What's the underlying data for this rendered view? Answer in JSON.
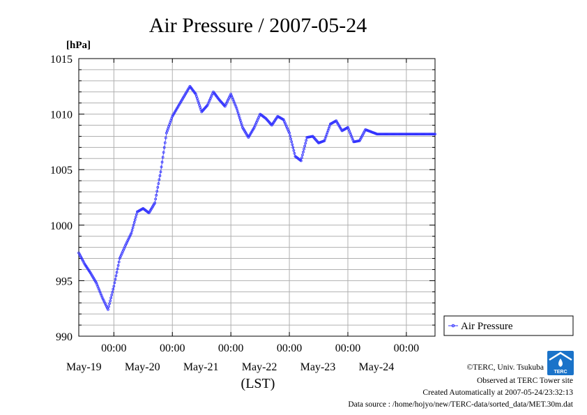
{
  "chart_data": {
    "type": "line",
    "title": "Air Pressure / 2007-05-24",
    "ylabel": "[hPa]",
    "xlabel": "(LST)",
    "ylim": [
      990,
      1015
    ],
    "yticks": [
      "1015",
      "1010",
      "1005",
      "1000",
      "995",
      "990"
    ],
    "ytick_values": [
      1015,
      1010,
      1005,
      1000,
      995,
      990
    ],
    "xlim_days": [
      18.4,
      24.49
    ],
    "xticks": [
      {
        "time": "00:00",
        "date": "May-19"
      },
      {
        "time": "00:00",
        "date": "May-20"
      },
      {
        "time": "00:00",
        "date": "May-21"
      },
      {
        "time": "00:00",
        "date": "May-22"
      },
      {
        "time": "00:00",
        "date": "May-23"
      },
      {
        "time": "00:00",
        "date": "May-24"
      }
    ],
    "xtick_days": [
      19,
      20,
      21,
      22,
      23,
      24
    ],
    "grid": true,
    "legend": {
      "placement": "right",
      "entries": [
        "Air Pressure"
      ]
    },
    "series": [
      {
        "name": "Air Pressure",
        "color": "#3333ff",
        "x": [
          18.4,
          18.5,
          18.6,
          18.7,
          18.8,
          18.9,
          19.0,
          19.1,
          19.2,
          19.3,
          19.4,
          19.5,
          19.6,
          19.7,
          19.8,
          19.9,
          20.0,
          20.1,
          20.2,
          20.3,
          20.4,
          20.5,
          20.6,
          20.7,
          20.8,
          20.9,
          21.0,
          21.1,
          21.2,
          21.3,
          21.4,
          21.5,
          21.6,
          21.7,
          21.8,
          21.9,
          22.0,
          22.1,
          22.2,
          22.3,
          22.4,
          22.5,
          22.6,
          22.7,
          22.8,
          22.9,
          23.0,
          23.1,
          23.2,
          23.3,
          23.4,
          23.5,
          23.6,
          23.7,
          23.8,
          23.9,
          24.0,
          24.1,
          24.2,
          24.3,
          24.4,
          24.49
        ],
        "y": [
          997.5,
          996.5,
          995.7,
          994.8,
          993.5,
          992.4,
          994.5,
          997.0,
          998.2,
          999.3,
          1001.2,
          1001.5,
          1001.1,
          1002.0,
          1004.8,
          1008.3,
          1009.8,
          1010.7,
          1011.6,
          1012.5,
          1011.8,
          1010.2,
          1010.8,
          1012.0,
          1011.3,
          1010.7,
          1011.8,
          1010.5,
          1008.8,
          1007.9,
          1008.8,
          1010.0,
          1009.6,
          1009.0,
          1009.8,
          1009.5,
          1008.3,
          1006.2,
          1005.8,
          1007.9,
          1008.0,
          1007.4,
          1007.6,
          1009.1,
          1009.4,
          1008.5,
          1008.8,
          1007.5,
          1007.6,
          1008.6,
          1008.4,
          1008.2,
          1008.2,
          1008.2,
          1008.2,
          1008.2,
          1008.2,
          1008.2,
          1008.2,
          1008.2,
          1008.2,
          1008.2
        ]
      }
    ]
  },
  "credits": {
    "copyright": "©TERC, Univ. Tsukuba",
    "observed": "Observed at TERC Tower site",
    "created": "Created Automatically at 2007-05-24/23:32:13",
    "source": "Data source : /home/hojyo/new/TERC-data/sorted_data/MET.30m.dat"
  },
  "logo": {
    "text": "TERC",
    "color": "#1a73c9"
  }
}
